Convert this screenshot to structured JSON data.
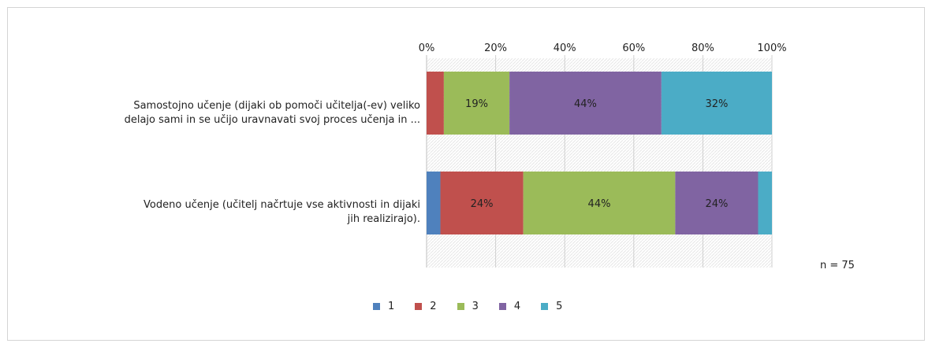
{
  "chart_data": {
    "type": "bar",
    "orientation": "horizontal",
    "stacked": "percent",
    "categories": [
      "Samostojno učenje (dijaki ob pomoči učitelja(-ev) veliko delajo sami in se učijo uravnavati svoj proces učenja in ...",
      "Vodeno učenje (učitelj načrtuje vse aktivnosti in dijaki jih realizirajo)."
    ],
    "category_lines": [
      [
        "Samostojno učenje (dijaki ob pomoči učitelja(-ev) veliko",
        "delajo sami in se učijo uravnavati svoj proces učenja in ..."
      ],
      [
        "Vodeno učenje (učitelj načrtuje vse aktivnosti in dijaki",
        "jih realizirajo)."
      ]
    ],
    "series": [
      {
        "name": "1",
        "color": "#4f81bd",
        "values": [
          0,
          4
        ]
      },
      {
        "name": "2",
        "color": "#c0504d",
        "values": [
          5,
          24
        ]
      },
      {
        "name": "3",
        "color": "#9bbb59",
        "values": [
          19,
          44
        ]
      },
      {
        "name": "4",
        "color": "#8064a2",
        "values": [
          44,
          24
        ]
      },
      {
        "name": "5",
        "color": "#4bacc6",
        "values": [
          32,
          4
        ]
      }
    ],
    "data_labels": [
      [
        "",
        "",
        "19%",
        "44%",
        "32%"
      ],
      [
        "",
        "24%",
        "44%",
        "24%",
        ""
      ]
    ],
    "x_ticks": [
      "0%",
      "20%",
      "40%",
      "60%",
      "80%",
      "100%"
    ],
    "xlim": [
      0,
      100
    ],
    "axis_position": "top",
    "legend_position": "bottom",
    "grid": true,
    "note": "n = 75"
  }
}
